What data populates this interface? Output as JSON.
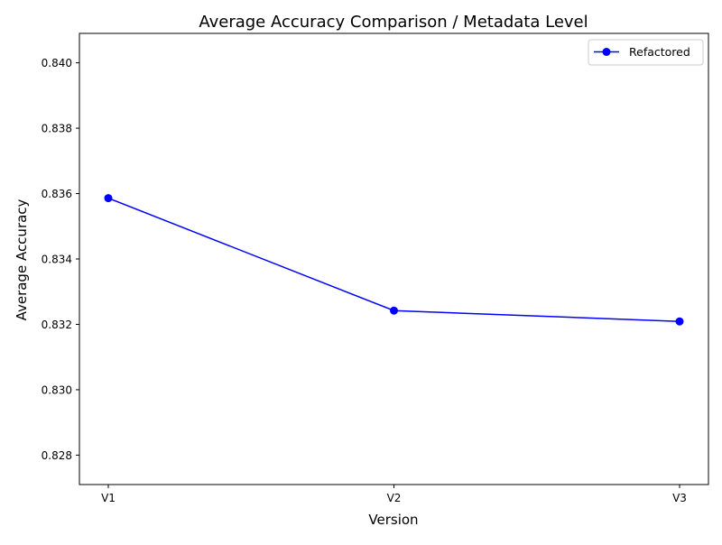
{
  "chart_data": {
    "type": "line",
    "title": "Average Accuracy Comparison / Metadata Level",
    "xlabel": "Version",
    "ylabel": "Average Accuracy",
    "categories": [
      "V1",
      "V2",
      "V3"
    ],
    "series": [
      {
        "name": "Refactored",
        "values": [
          0.83586,
          0.83242,
          0.83209
        ],
        "color": "#0000ff",
        "marker": "circle"
      }
    ],
    "ylim": [
      0.8271,
      0.8409
    ],
    "yticks": [
      0.828,
      0.83,
      0.832,
      0.834,
      0.836,
      0.838,
      0.84
    ],
    "ytick_labels": [
      "0.828",
      "0.830",
      "0.832",
      "0.834",
      "0.836",
      "0.838",
      "0.840"
    ],
    "grid": false,
    "legend_position": "top-right"
  }
}
